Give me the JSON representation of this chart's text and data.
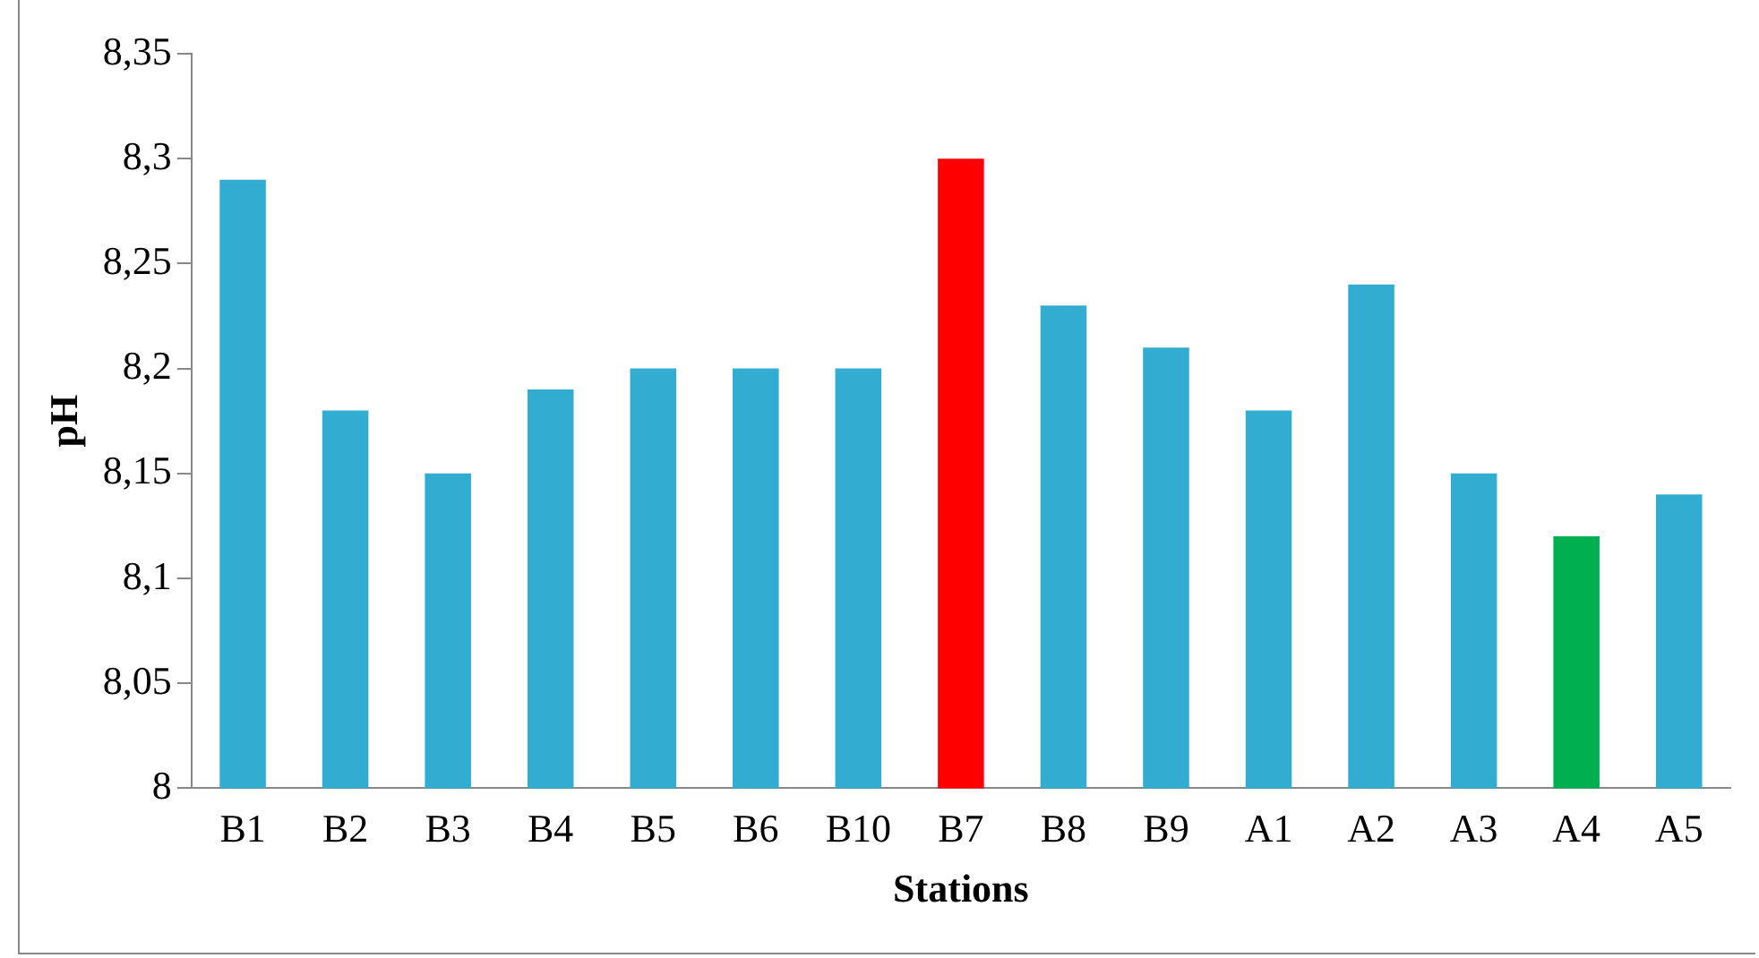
{
  "chart_data": {
    "type": "bar",
    "xlabel": "Stations",
    "ylabel": "pH",
    "categories": [
      "B1",
      "B2",
      "B3",
      "B4",
      "B5",
      "B6",
      "B10",
      "B7",
      "B8",
      "B9",
      "A1",
      "A2",
      "A3",
      "A4",
      "A5"
    ],
    "values": [
      8.29,
      8.18,
      8.15,
      8.19,
      8.2,
      8.2,
      8.2,
      8.3,
      8.23,
      8.21,
      8.18,
      8.24,
      8.15,
      8.12,
      8.14
    ],
    "colors": [
      "#33acd2",
      "#33acd2",
      "#33acd2",
      "#33acd2",
      "#33acd2",
      "#33acd2",
      "#33acd2",
      "#ff0000",
      "#33acd2",
      "#33acd2",
      "#33acd2",
      "#33acd2",
      "#33acd2",
      "#00b050",
      "#33acd2"
    ],
    "ylim": [
      8,
      8.35
    ],
    "yticks": [
      {
        "value": 8,
        "label": "8"
      },
      {
        "value": 8.05,
        "label": "8,05"
      },
      {
        "value": 8.1,
        "label": "8,1"
      },
      {
        "value": 8.15,
        "label": "8,15"
      },
      {
        "value": 8.2,
        "label": "8,2"
      },
      {
        "value": 8.25,
        "label": "8,25"
      },
      {
        "value": 8.3,
        "label": "8,3"
      },
      {
        "value": 8.35,
        "label": "8,35"
      }
    ],
    "grid": false,
    "legend": false
  }
}
